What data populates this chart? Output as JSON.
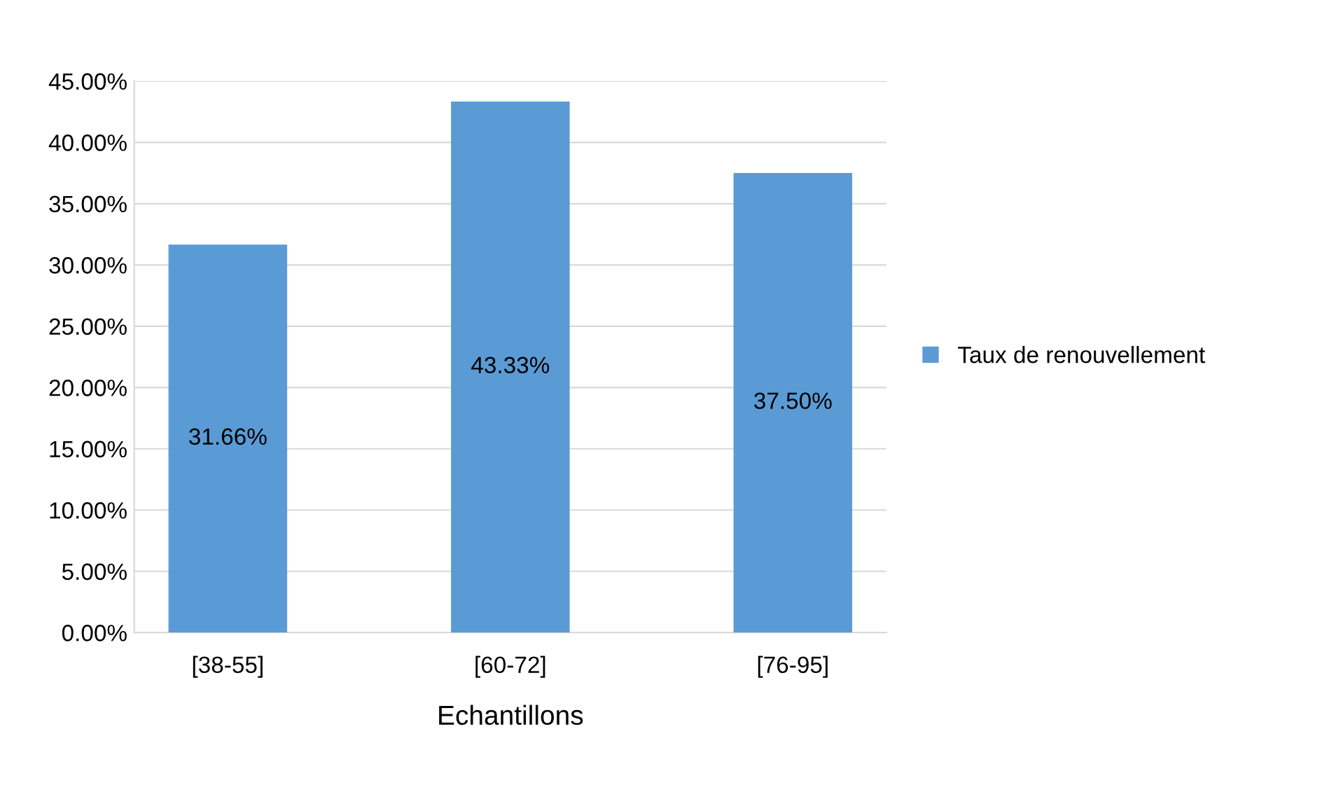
{
  "chart_data": {
    "type": "bar",
    "xlabel": "Echantillons",
    "categories": [
      "[38-55]",
      "[60-72]",
      "[76-95]"
    ],
    "series": [
      {
        "name": "Taux de renouvellement",
        "color": "#5b9bd5",
        "values": [
          31.66,
          43.33,
          37.5
        ],
        "value_labels": [
          "31.66%",
          "43.33%",
          "37.50%"
        ]
      }
    ],
    "ylim": [
      0,
      45
    ],
    "yticks": [
      {
        "value": 0,
        "label": "0.00%"
      },
      {
        "value": 5,
        "label": "5.00%"
      },
      {
        "value": 10,
        "label": "10.00%"
      },
      {
        "value": 15,
        "label": "15.00%"
      },
      {
        "value": 20,
        "label": "20.00%"
      },
      {
        "value": 25,
        "label": "25.00%"
      },
      {
        "value": 30,
        "label": "30.00%"
      },
      {
        "value": 35,
        "label": "35.00%"
      },
      {
        "value": 40,
        "label": "40.00%"
      },
      {
        "value": 45,
        "label": "45.00%"
      }
    ],
    "grid": "y",
    "legend": "right"
  }
}
